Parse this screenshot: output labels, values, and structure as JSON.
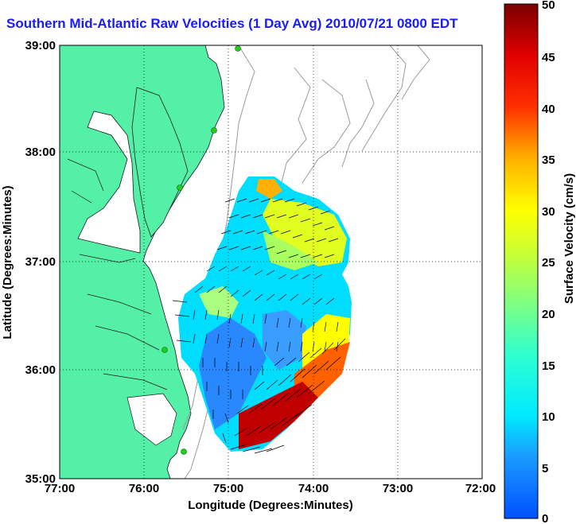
{
  "title": "Southern Mid-Atlantic Raw Velocities (1 Day Avg) 2010/07/21 0800 EDT",
  "xlabel": "Longitude (Degrees:Minutes)",
  "ylabel": "Latitude (Degrees:Minutes)",
  "x_ticks": [
    "77:00",
    "76:00",
    "75:00",
    "74:00",
    "73:00",
    "72:00"
  ],
  "y_ticks": [
    "39:00",
    "38:00",
    "37:00",
    "36:00",
    "35:00"
  ],
  "colorbar": {
    "label": "Surface Velocity (cm/s)",
    "ticks": [
      "50",
      "45",
      "40",
      "35",
      "30",
      "25",
      "20",
      "15",
      "10",
      "5",
      "0"
    ],
    "range": [
      0,
      50
    ]
  },
  "colors": {
    "land": "#55f0a8",
    "title": "#1a1aff",
    "station": "#22cc22"
  }
}
